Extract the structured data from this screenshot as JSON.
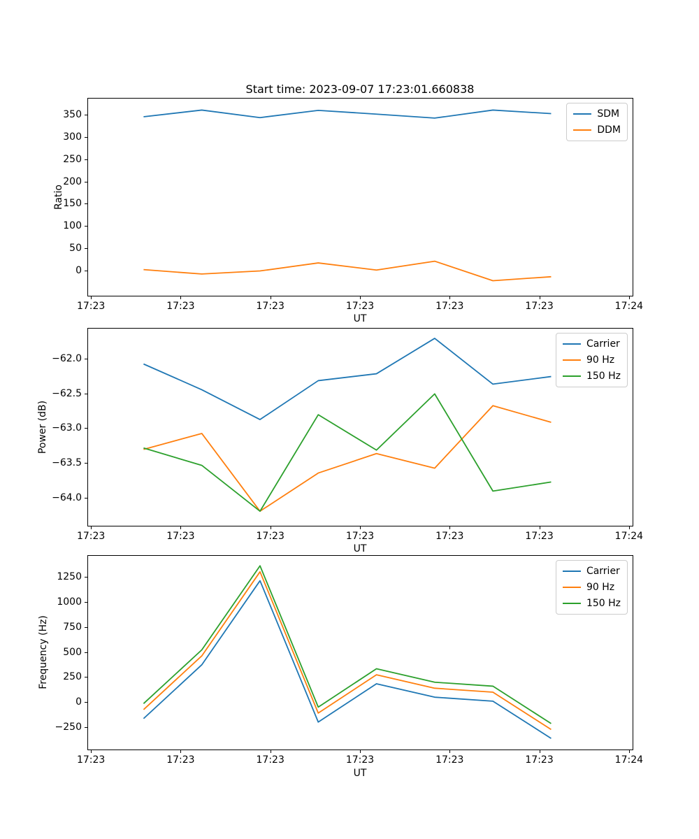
{
  "figure": {
    "title": "Start time: 2023-09-07 17:23:01.660838",
    "background": "#ffffff"
  },
  "colors": {
    "blue": "#1f77b4",
    "orange": "#ff7f0e",
    "green": "#2ca02c",
    "text": "#000000",
    "legend_border": "#cccccc"
  },
  "x_axis": {
    "label": "UT",
    "tick_labels": [
      "17:23",
      "17:23",
      "17:23",
      "17:23",
      "17:23",
      "17:23",
      "17:24"
    ],
    "tick_values": [
      0,
      10,
      20,
      30,
      40,
      50,
      60
    ],
    "xlim": [
      -0.4,
      60.4
    ],
    "x_values": [
      5.8,
      12.3,
      18.8,
      25.3,
      31.8,
      38.3,
      44.8,
      51.3
    ]
  },
  "chart_data": [
    {
      "type": "line",
      "title": "Start time: 2023-09-07 17:23:01.660838",
      "xlabel": "UT",
      "ylabel": "Ratio",
      "ylim": [
        -57,
        388
      ],
      "grid": false,
      "legend_position": "upper right",
      "yticks": [
        0,
        50,
        100,
        150,
        200,
        250,
        300,
        350
      ],
      "ytick_labels": [
        "0",
        "50",
        "100",
        "150",
        "200",
        "250",
        "300",
        "350"
      ],
      "series": [
        {
          "name": "SDM",
          "color": "#1f77b4",
          "values": [
            347,
            362,
            345,
            361.5,
            353,
            344,
            362,
            354
          ]
        },
        {
          "name": "DDM",
          "color": "#ff7f0e",
          "values": [
            2,
            -8,
            -1,
            17,
            1,
            21,
            -23,
            -14
          ]
        }
      ]
    },
    {
      "type": "line",
      "xlabel": "UT",
      "ylabel": "Power (dB)",
      "ylim": [
        -64.4,
        -61.56
      ],
      "grid": false,
      "legend_position": "upper right",
      "yticks": [
        -64.0,
        -63.5,
        -63.0,
        -62.5,
        -62.0
      ],
      "ytick_labels": [
        "−64.0",
        "−63.5",
        "−63.0",
        "−62.5",
        "−62.0"
      ],
      "series": [
        {
          "name": "Carrier",
          "color": "#1f77b4",
          "values": [
            -62.07,
            -62.44,
            -62.87,
            -62.31,
            -62.21,
            -61.7,
            -62.36,
            -62.25
          ]
        },
        {
          "name": "90 Hz",
          "color": "#ff7f0e",
          "values": [
            -63.3,
            -63.07,
            -64.19,
            -63.64,
            -63.36,
            -63.57,
            -62.67,
            -62.91
          ]
        },
        {
          "name": "150 Hz",
          "color": "#2ca02c",
          "values": [
            -63.28,
            -63.53,
            -64.19,
            -62.8,
            -63.31,
            -62.5,
            -63.9,
            -63.77
          ]
        }
      ]
    },
    {
      "type": "line",
      "xlabel": "UT",
      "ylabel": "Frequency (Hz)",
      "ylim": [
        -476,
        1470
      ],
      "grid": false,
      "legend_position": "upper right",
      "yticks": [
        -250,
        0,
        250,
        500,
        750,
        1000,
        1250
      ],
      "ytick_labels": [
        "−250",
        "0",
        "250",
        "500",
        "750",
        "1000",
        "1250"
      ],
      "series": [
        {
          "name": "Carrier",
          "color": "#1f77b4",
          "values": [
            -165,
            375,
            1220,
            -200,
            185,
            50,
            10,
            -365
          ]
        },
        {
          "name": "90 Hz",
          "color": "#ff7f0e",
          "values": [
            -75,
            465,
            1310,
            -110,
            275,
            140,
            100,
            -275
          ]
        },
        {
          "name": "150 Hz",
          "color": "#2ca02c",
          "values": [
            -15,
            525,
            1370,
            -50,
            335,
            200,
            160,
            -215
          ]
        }
      ]
    }
  ]
}
